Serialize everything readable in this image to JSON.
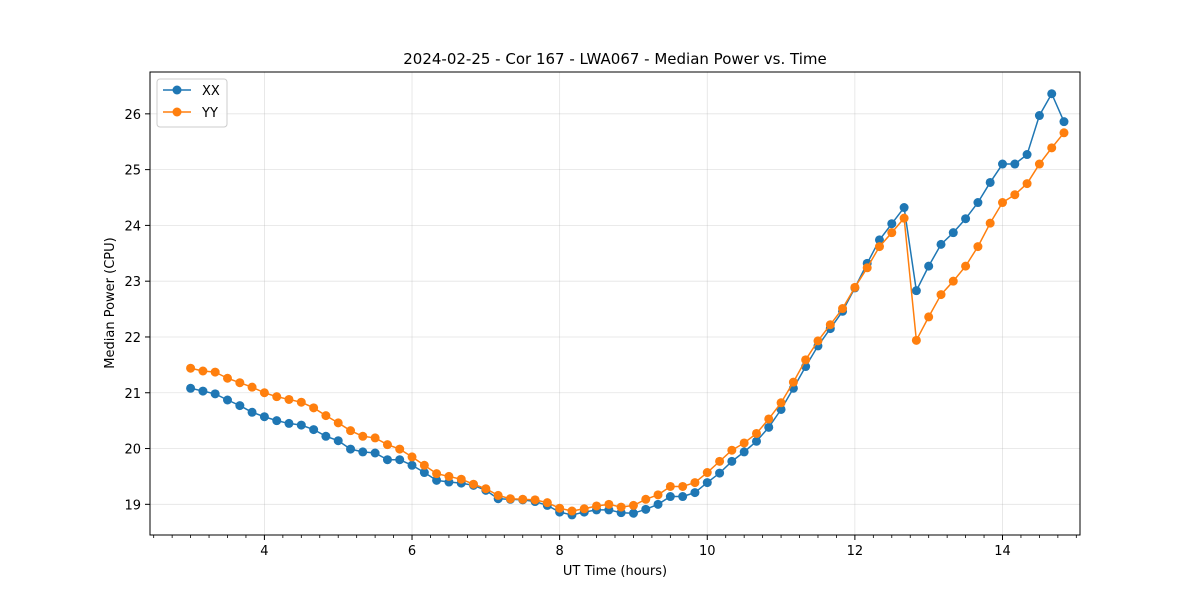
{
  "chart_data": {
    "type": "line",
    "title": "2024-02-25 - Cor 167 - LWA067 - Median Power vs. Time",
    "xlabel": "UT Time (hours)",
    "ylabel": "Median Power (CPU)",
    "xlim": [
      2.45,
      15.05
    ],
    "ylim": [
      18.45,
      26.75
    ],
    "xticks": [
      4,
      6,
      8,
      10,
      12,
      14
    ],
    "xtick_labels": [
      "4",
      "6",
      "8",
      "10",
      "12",
      "14"
    ],
    "yticks": [
      19,
      20,
      21,
      22,
      23,
      24,
      25,
      26
    ],
    "ytick_labels": [
      "19",
      "20",
      "21",
      "22",
      "23",
      "24",
      "25",
      "26"
    ],
    "grid": true,
    "legend_position": "top-left",
    "x": [
      3.0,
      3.167,
      3.333,
      3.5,
      3.667,
      3.833,
      4.0,
      4.167,
      4.333,
      4.5,
      4.667,
      4.833,
      5.0,
      5.167,
      5.333,
      5.5,
      5.667,
      5.833,
      6.0,
      6.167,
      6.333,
      6.5,
      6.667,
      6.833,
      7.0,
      7.167,
      7.333,
      7.5,
      7.667,
      7.833,
      8.0,
      8.167,
      8.333,
      8.5,
      8.667,
      8.833,
      9.0,
      9.167,
      9.333,
      9.5,
      9.667,
      9.833,
      10.0,
      10.167,
      10.333,
      10.5,
      10.667,
      10.833,
      11.0,
      11.167,
      11.333,
      11.5,
      11.667,
      11.833,
      12.0,
      12.167,
      12.333,
      12.5,
      12.667,
      12.833,
      13.0,
      13.167,
      13.333,
      13.5,
      13.667,
      13.833,
      14.0,
      14.167,
      14.333,
      14.5,
      14.667,
      14.833
    ],
    "series": [
      {
        "name": "XX",
        "color": "#1f77b4",
        "values": [
          21.08,
          21.03,
          20.98,
          20.87,
          20.77,
          20.65,
          20.57,
          20.5,
          20.45,
          20.42,
          20.34,
          20.22,
          20.14,
          19.99,
          19.94,
          19.92,
          19.8,
          19.8,
          19.7,
          19.57,
          19.43,
          19.4,
          19.38,
          19.34,
          19.25,
          19.1,
          19.09,
          19.08,
          19.05,
          18.98,
          18.86,
          18.81,
          18.86,
          18.9,
          18.9,
          18.85,
          18.84,
          18.91,
          19.0,
          19.14,
          19.14,
          19.21,
          19.39,
          19.56,
          19.77,
          19.94,
          20.13,
          20.38,
          20.7,
          21.08,
          21.47,
          21.84,
          22.15,
          22.46,
          22.88,
          23.32,
          23.74,
          24.03,
          24.32,
          22.83,
          23.27,
          23.66,
          23.87,
          24.12,
          24.41,
          24.77,
          25.1,
          25.1,
          25.27,
          25.97,
          26.36,
          25.86
        ]
      },
      {
        "name": "YY",
        "color": "#ff7f0e",
        "values": [
          21.44,
          21.39,
          21.37,
          21.26,
          21.18,
          21.1,
          21.0,
          20.93,
          20.88,
          20.83,
          20.73,
          20.59,
          20.46,
          20.32,
          20.22,
          20.19,
          20.07,
          19.99,
          19.85,
          19.7,
          19.55,
          19.5,
          19.45,
          19.36,
          19.28,
          19.16,
          19.1,
          19.09,
          19.08,
          19.03,
          18.93,
          18.88,
          18.92,
          18.97,
          19.0,
          18.95,
          18.98,
          19.09,
          19.17,
          19.32,
          19.32,
          19.39,
          19.57,
          19.77,
          19.97,
          20.1,
          20.27,
          20.53,
          20.82,
          21.19,
          21.59,
          21.93,
          22.22,
          22.51,
          22.89,
          23.24,
          23.62,
          23.87,
          24.13,
          21.94,
          22.36,
          22.76,
          23.0,
          23.27,
          23.62,
          24.04,
          24.41,
          24.55,
          24.75,
          25.1,
          25.39,
          25.66
        ]
      }
    ]
  }
}
